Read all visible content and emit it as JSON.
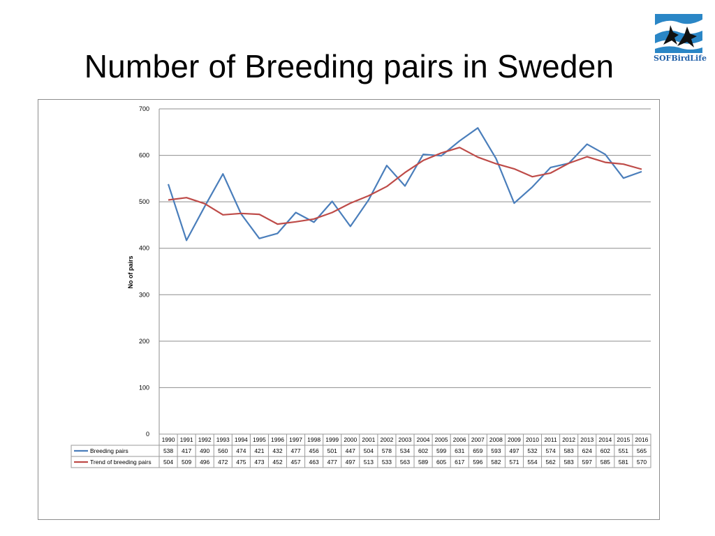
{
  "slide": {
    "title": "Number of Breeding pairs in Sweden",
    "logo_text_a": "SOF",
    "logo_text_b": "BirdLife"
  },
  "chart_data": {
    "type": "line",
    "title": "",
    "xlabel": "",
    "ylabel": "No of pairs",
    "ylim": [
      0,
      700
    ],
    "yticks": [
      0,
      100,
      200,
      300,
      400,
      500,
      600,
      700
    ],
    "grid": true,
    "legend": "table-below",
    "categories": [
      "1990",
      "1991",
      "1992",
      "1993",
      "1994",
      "1995",
      "1996",
      "1997",
      "1998",
      "1999",
      "2000",
      "2001",
      "2002",
      "2003",
      "2004",
      "2005",
      "2006",
      "2007",
      "2008",
      "2009",
      "2010",
      "2011",
      "2012",
      "2013",
      "2014",
      "2015",
      "2016"
    ],
    "series": [
      {
        "name": "Breeding pairs",
        "color": "#4a7ebb",
        "values": [
          538,
          417,
          490,
          560,
          474,
          421,
          432,
          477,
          456,
          501,
          447,
          504,
          578,
          534,
          602,
          599,
          631,
          659,
          593,
          497,
          532,
          574,
          583,
          624,
          602,
          551,
          565
        ]
      },
      {
        "name": "Trend of breeding pairs",
        "color": "#be4b48",
        "values": [
          504,
          509,
          496,
          472,
          475,
          473,
          452,
          457,
          463,
          477,
          497,
          513,
          533,
          563,
          589,
          605,
          617,
          596,
          582,
          571,
          554,
          562,
          583,
          597,
          585,
          581,
          570
        ]
      }
    ]
  }
}
